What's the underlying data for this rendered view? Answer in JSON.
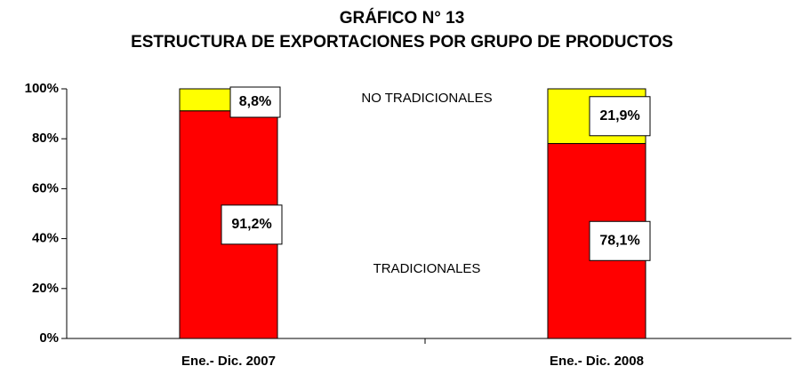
{
  "chart_data": {
    "type": "stacked_bar",
    "title": "GRÁFICO N° 13",
    "subtitle": "ESTRUCTURA DE EXPORTACIONES POR GRUPO DE PRODUCTOS",
    "categories": [
      "Ene.- Dic. 2007",
      "Ene.- Dic. 2008"
    ],
    "series": [
      {
        "name": "TRADICIONALES",
        "color": "#ff0000",
        "values": [
          91.2,
          78.1
        ],
        "value_labels": [
          "91,2%",
          "78,1%"
        ]
      },
      {
        "name": "NO TRADICIONALES",
        "color": "#ffff00",
        "values": [
          8.8,
          21.9
        ],
        "value_labels": [
          "8,8%",
          "21,9%"
        ]
      }
    ],
    "ylim": [
      0,
      100
    ],
    "yticks": [
      {
        "value": 0,
        "label": "0%"
      },
      {
        "value": 20,
        "label": "20%"
      },
      {
        "value": 40,
        "label": "40%"
      },
      {
        "value": 60,
        "label": "60%"
      },
      {
        "value": 80,
        "label": "80%"
      },
      {
        "value": 100,
        "label": "100%"
      }
    ]
  }
}
